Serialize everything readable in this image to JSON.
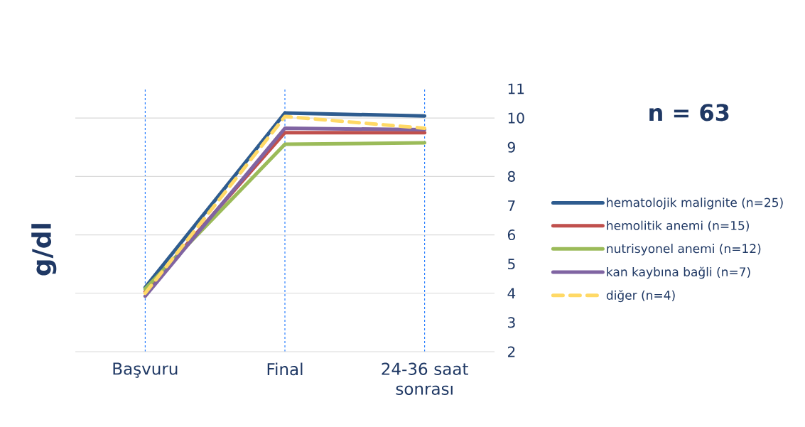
{
  "chart_data": {
    "type": "line",
    "ylabel": "g/dl",
    "categories": [
      "Başvuru",
      "Final",
      "24-36 saat sonrası"
    ],
    "series": [
      {
        "name": "hematolojik malignite (n=25)",
        "color": "#2e5c8f",
        "values": [
          4.2,
          10.17,
          10.07
        ]
      },
      {
        "name": "hemolitik anemi (n=15)",
        "color": "#c0504d",
        "values": [
          4.05,
          9.5,
          9.5
        ]
      },
      {
        "name": "nutrisyonel anemi (n=12)",
        "color": "#9bbb59",
        "values": [
          4.15,
          9.1,
          9.15
        ]
      },
      {
        "name": "kan kaybına bağli (n=7)",
        "color": "#8064a2",
        "values": [
          3.9,
          9.65,
          9.6
        ]
      },
      {
        "name": "diğer (n=4)",
        "color": "#ffd966",
        "values": [
          4.0,
          10.05,
          9.65
        ],
        "line_style": "dashed"
      }
    ],
    "ylim": [
      2,
      11
    ],
    "yticks": [
      2,
      3,
      4,
      5,
      6,
      7,
      8,
      9,
      10,
      11
    ],
    "grid": true,
    "legend": "right",
    "marker": "none",
    "annotations": [
      "n = 63"
    ]
  }
}
